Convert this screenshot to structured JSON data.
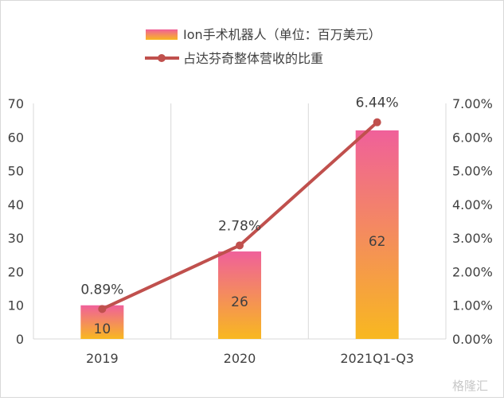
{
  "chart_data": {
    "type": "bar+line",
    "categories": [
      "2019",
      "2020",
      "2021Q1-Q3"
    ],
    "series": [
      {
        "name": "Ion手术机器人（单位：百万美元）",
        "type": "bar",
        "axis": "left",
        "values": [
          10,
          26,
          62
        ],
        "data_labels": [
          "10",
          "26",
          "62"
        ]
      },
      {
        "name": "占达芬奇整体营收的比重",
        "type": "line",
        "axis": "right",
        "values": [
          0.89,
          2.78,
          6.44
        ],
        "data_labels": [
          "0.89%",
          "2.78%",
          "6.44%"
        ]
      }
    ],
    "ylim": [
      0,
      70
    ],
    "y2lim": [
      0,
      7
    ],
    "yticks": [
      "0",
      "10",
      "20",
      "30",
      "40",
      "50",
      "60",
      "70"
    ],
    "y2ticks": [
      "0.00%",
      "1.00%",
      "2.00%",
      "3.00%",
      "4.00%",
      "5.00%",
      "6.00%",
      "7.00%"
    ],
    "legend_position": "top",
    "grid": "vertical",
    "colors": {
      "bar_top": "#F0609A",
      "bar_bottom": "#F8B820",
      "line": "#C0504D",
      "grid": "#D9D9D9"
    }
  },
  "watermark": "格隆汇"
}
